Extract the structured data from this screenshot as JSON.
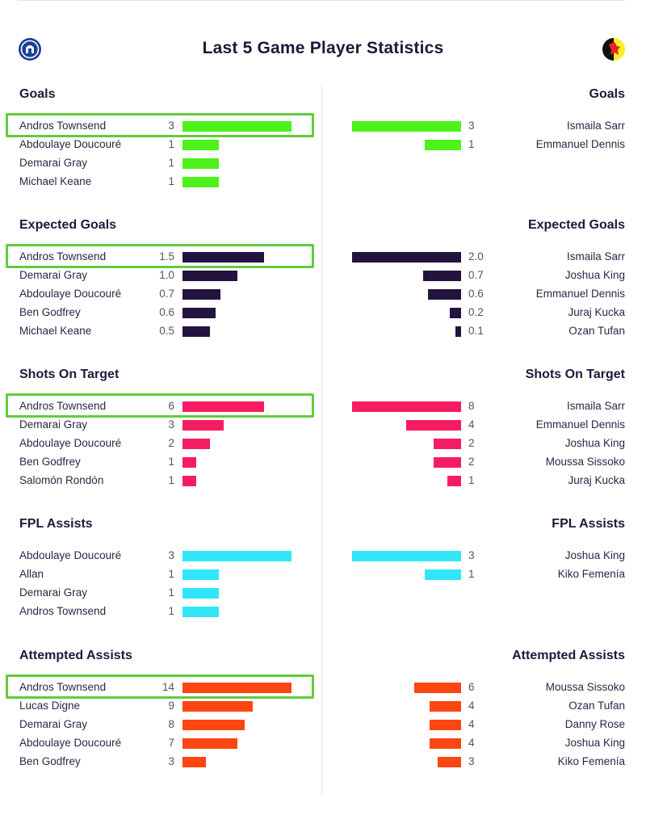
{
  "page": {
    "title": "Last 5 Game Player Statistics",
    "left_crest_icon": "everton-crest-icon",
    "right_crest_icon": "watford-crest-icon"
  },
  "chart_data": [
    {
      "type": "bar",
      "title": "Goals",
      "color": "#4cf21a",
      "max": 3,
      "left": [
        [
          "Andros Townsend",
          "3",
          3
        ],
        [
          "Abdoulaye Doucouré",
          "1",
          1
        ],
        [
          "Demarai Gray",
          "1",
          1
        ],
        [
          "Michael Keane",
          "1",
          1
        ]
      ],
      "right": [
        [
          "Ismaila Sarr",
          "3",
          3
        ],
        [
          "Emmanuel Dennis",
          "1",
          1
        ]
      ]
    },
    {
      "type": "bar",
      "title": "Expected Goals",
      "color": "#23133f",
      "max": 2.0,
      "left": [
        [
          "Andros Townsend",
          "1.5",
          1.5
        ],
        [
          "Demarai Gray",
          "1.0",
          1.0
        ],
        [
          "Abdoulaye Doucouré",
          "0.7",
          0.7
        ],
        [
          "Ben Godfrey",
          "0.6",
          0.6
        ],
        [
          "Michael Keane",
          "0.5",
          0.5
        ]
      ],
      "right": [
        [
          "Ismaila Sarr",
          "2.0",
          2.0
        ],
        [
          "Joshua King",
          "0.7",
          0.7
        ],
        [
          "Emmanuel Dennis",
          "0.6",
          0.6
        ],
        [
          "Juraj Kucka",
          "0.2",
          0.2
        ],
        [
          "Ozan Tufan",
          "0.1",
          0.1
        ]
      ]
    },
    {
      "type": "bar",
      "title": "Shots On Target",
      "color": "#f51d62",
      "max": 8,
      "left": [
        [
          "Andros Townsend",
          "6",
          6
        ],
        [
          "Demarai Gray",
          "3",
          3
        ],
        [
          "Abdoulaye Doucouré",
          "2",
          2
        ],
        [
          "Ben Godfrey",
          "1",
          1
        ],
        [
          "Salomón Rondón",
          "1",
          1
        ]
      ],
      "right": [
        [
          "Ismaila Sarr",
          "8",
          8
        ],
        [
          "Emmanuel Dennis",
          "4",
          4
        ],
        [
          "Joshua King",
          "2",
          2
        ],
        [
          "Moussa Sissoko",
          "2",
          2
        ],
        [
          "Juraj Kucka",
          "1",
          1
        ]
      ]
    },
    {
      "type": "bar",
      "title": "FPL Assists",
      "color": "#30e6f7",
      "max": 3,
      "left": [
        [
          "Abdoulaye Doucouré",
          "3",
          3
        ],
        [
          "Allan",
          "1",
          1
        ],
        [
          "Demarai Gray",
          "1",
          1
        ],
        [
          "Andros Townsend",
          "1",
          1
        ]
      ],
      "right": [
        [
          "Joshua King",
          "3",
          3
        ],
        [
          "Kiko Femenía",
          "1",
          1
        ]
      ]
    },
    {
      "type": "bar",
      "title": "Attempted Assists",
      "color": "#fc4612",
      "max": 14,
      "left": [
        [
          "Andros Townsend",
          "14",
          14
        ],
        [
          "Lucas Digne",
          "9",
          9
        ],
        [
          "Demarai Gray",
          "8",
          8
        ],
        [
          "Abdoulaye Doucouré",
          "7",
          7
        ],
        [
          "Ben Godfrey",
          "3",
          3
        ]
      ],
      "right": [
        [
          "Moussa Sissoko",
          "6",
          6
        ],
        [
          "Ozan Tufan",
          "4",
          4
        ],
        [
          "Danny Rose",
          "4",
          4
        ],
        [
          "Joshua King",
          "4",
          4
        ],
        [
          "Kiko Femenía",
          "3",
          3
        ]
      ]
    }
  ],
  "highlighted_player": "Andros Townsend"
}
